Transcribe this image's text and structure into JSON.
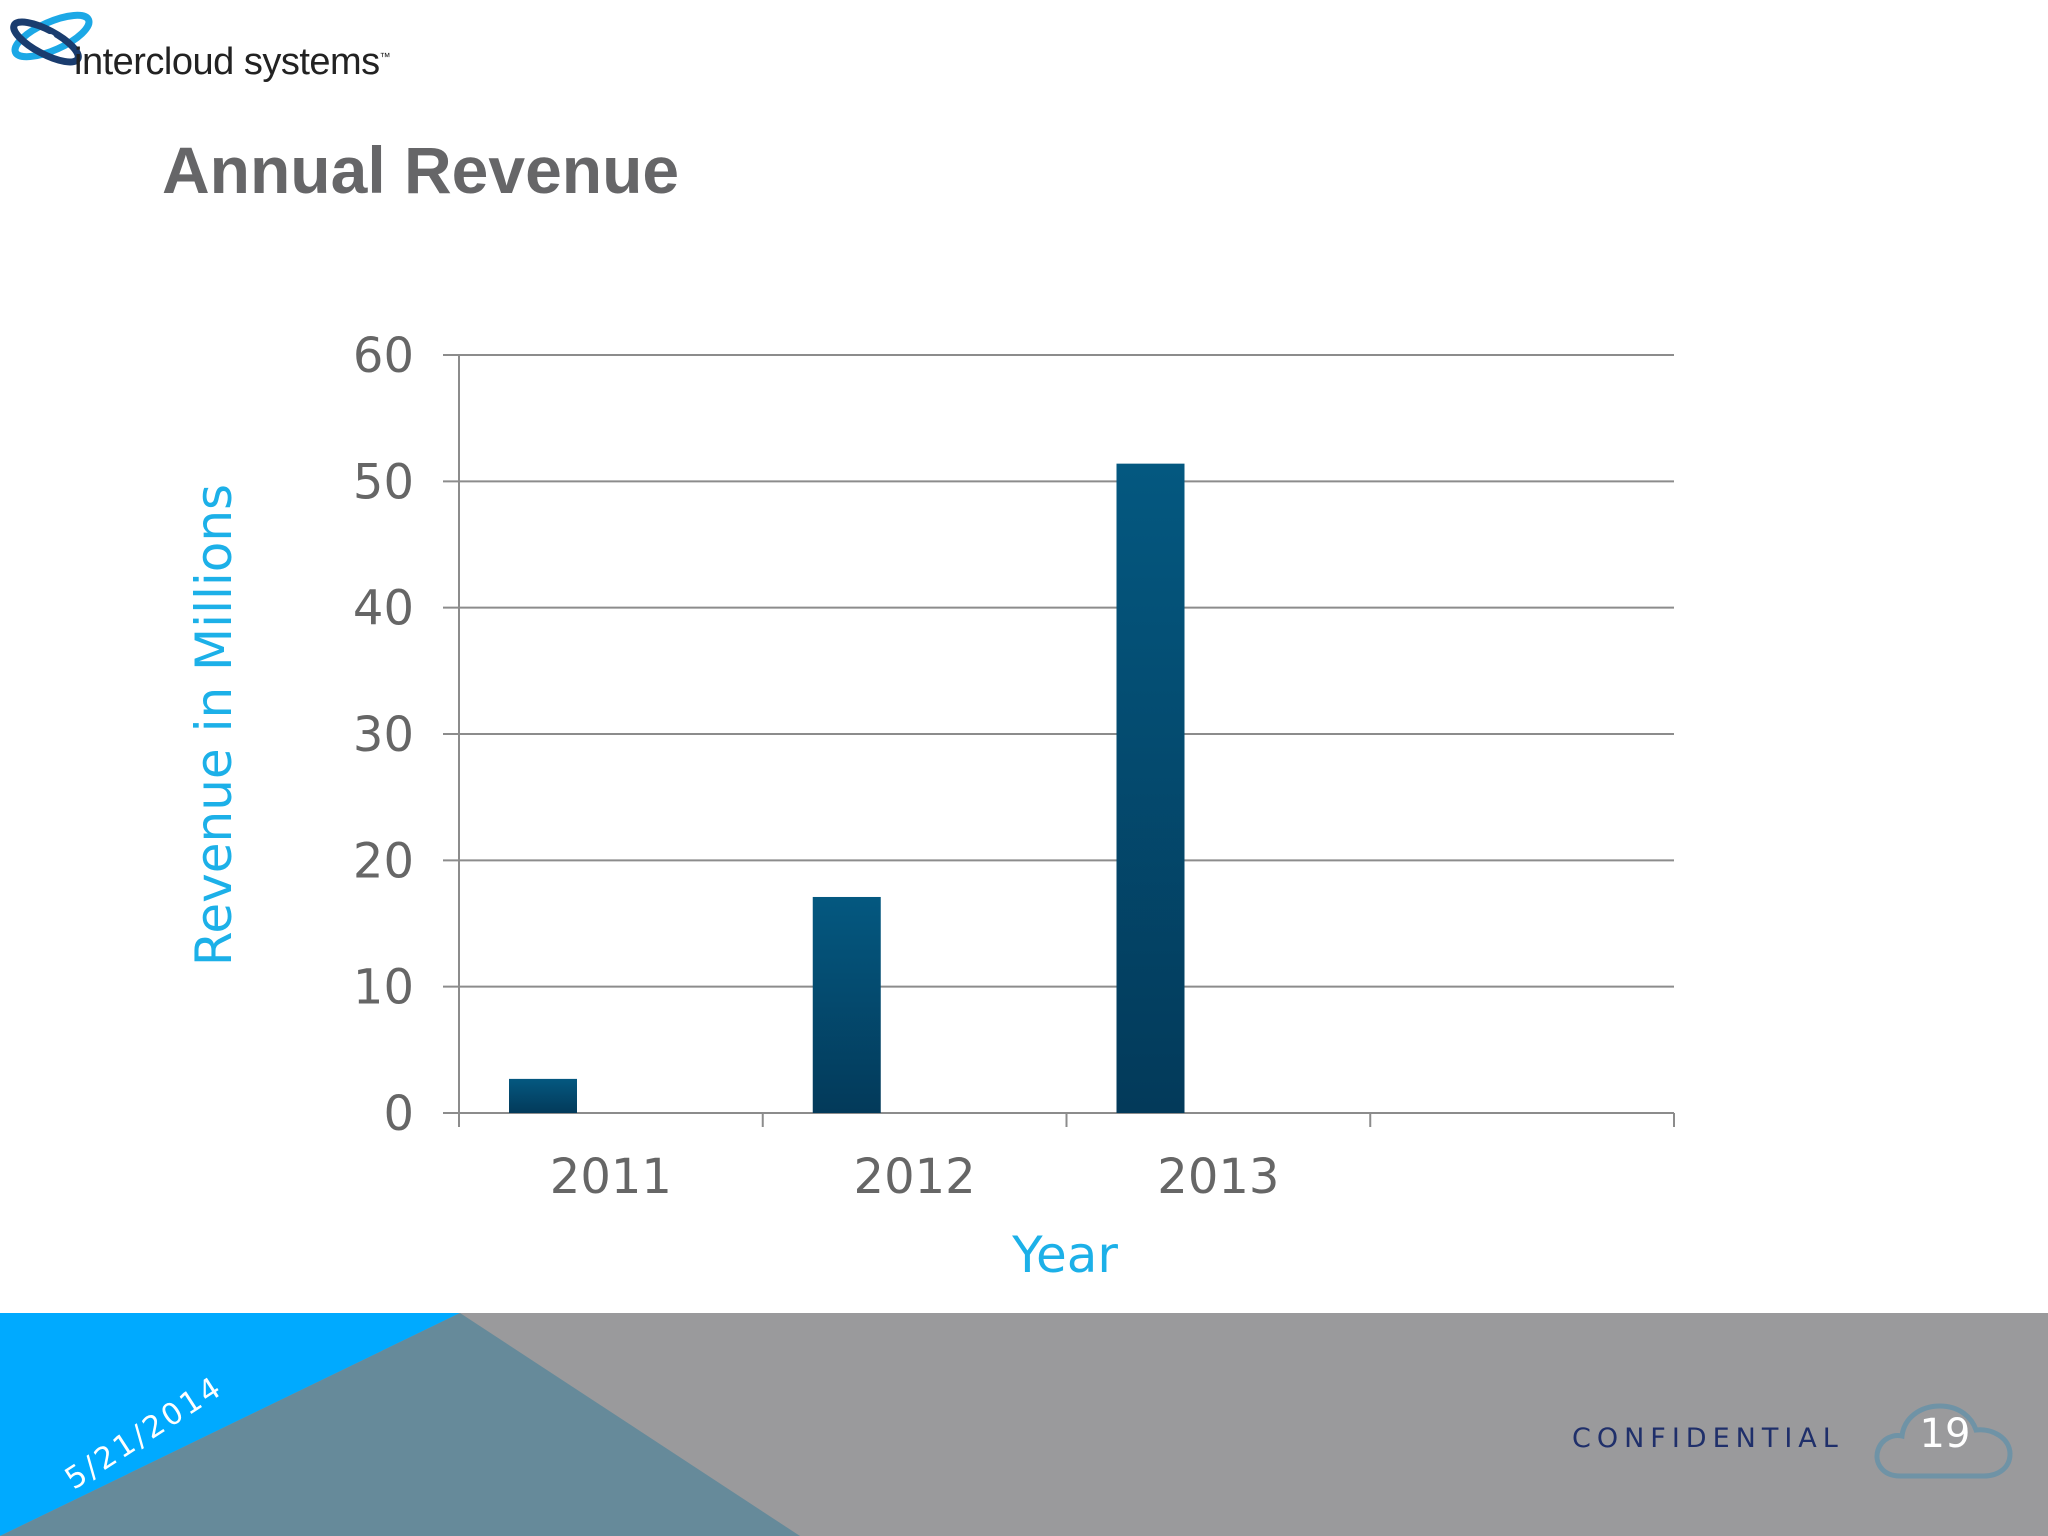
{
  "logo": {
    "text": "intercloud systems",
    "tm": "™"
  },
  "slide": {
    "title": "Annual Revenue"
  },
  "footer": {
    "date": "5/21/2014",
    "confidential": "CONFIDENTIAL",
    "page_number": "19"
  },
  "colors": {
    "bar_top": "#045880",
    "bar_bottom": "#033a5a",
    "axis_label": "#1cb0e8",
    "tick_label": "#666666",
    "grid": "#8c8c8c",
    "footer_blue": "#00aaff",
    "footer_gray": "#9a9a9c",
    "footer_slate": "#668a9a"
  },
  "chart_data": {
    "type": "bar",
    "categories": [
      "2011",
      "2012",
      "2013",
      ""
    ],
    "values": [
      2.7,
      17.1,
      51.4,
      null
    ],
    "xlabel": "Year",
    "ylabel": "Revenue in Millions",
    "ylim": [
      0,
      60
    ],
    "yticks": [
      "0",
      "10",
      "20",
      "30",
      "40",
      "50",
      "60"
    ],
    "grid": true,
    "legend": "none"
  }
}
